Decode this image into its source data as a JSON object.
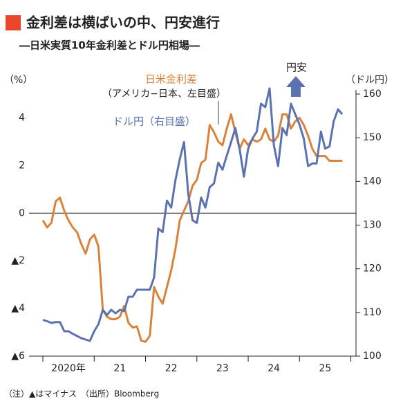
{
  "chart_data": {
    "type": "line",
    "title": "金利差は横ばいの中、円安進行",
    "subtitle": "―日米実質10年金利差とドル円相場―",
    "ylabel": "（%）",
    "y2label": "（ドル円）",
    "annotations": [
      "日米金利差",
      "（アメリカ−日本、左目盛）",
      "ドル円（右目盛）",
      "円安"
    ],
    "note": "（注）▲はマイナス　（出所）Bloomberg",
    "xlim": [
      2020,
      2026.1
    ],
    "xticks": [
      {
        "value": 2020.5,
        "label": "2020年"
      },
      {
        "value": 2021.5,
        "label": "21"
      },
      {
        "value": 2022.5,
        "label": "22"
      },
      {
        "value": 2023.5,
        "label": "23"
      },
      {
        "value": 2024.5,
        "label": "24"
      },
      {
        "value": 2025.5,
        "label": "25"
      }
    ],
    "ylim": [
      -6,
      5
    ],
    "yticks": [
      {
        "value": -6,
        "label": "▲6"
      },
      {
        "value": -4,
        "label": "▲4"
      },
      {
        "value": -2,
        "label": "▲2"
      },
      0,
      2,
      4
    ],
    "y2lim": [
      100,
      160
    ],
    "y2ticks": [
      100,
      110,
      120,
      130,
      140,
      150,
      160
    ],
    "x": [
      2020,
      2020.083,
      2020.167,
      2020.25,
      2020.333,
      2020.417,
      2020.5,
      2020.583,
      2020.667,
      2020.75,
      2020.833,
      2020.917,
      2021,
      2021.083,
      2021.167,
      2021.25,
      2021.333,
      2021.417,
      2021.5,
      2021.583,
      2021.667,
      2021.75,
      2021.833,
      2021.917,
      2022,
      2022.083,
      2022.167,
      2022.25,
      2022.333,
      2022.417,
      2022.5,
      2022.583,
      2022.667,
      2022.75,
      2022.833,
      2022.917,
      2023,
      2023.083,
      2023.167,
      2023.25,
      2023.333,
      2023.417,
      2023.5,
      2023.583,
      2023.667,
      2023.75,
      2023.833,
      2023.917,
      2024,
      2024.083,
      2024.167,
      2024.25,
      2024.333,
      2024.417,
      2024.5,
      2024.583,
      2024.667,
      2024.75,
      2024.833,
      2024.917,
      2025,
      2025.083,
      2025.167,
      2025.25,
      2025.333,
      2025.417,
      2025.5,
      2025.583,
      2025.667,
      2025.75,
      2025.833
    ],
    "series": [
      {
        "name": "日米金利差",
        "color": "#d9823b",
        "axis": "y",
        "values": [
          -0.3,
          -0.6,
          -0.4,
          0.5,
          0.65,
          0.1,
          -0.3,
          -0.6,
          -0.8,
          -1.3,
          -1.7,
          -1.1,
          -0.9,
          -1.4,
          -4.05,
          -4.35,
          -4.45,
          -4.45,
          -4.35,
          -3.9,
          -4.6,
          -4.8,
          -4.75,
          -5.35,
          -5.4,
          -5.15,
          -3.1,
          -3.5,
          -3.8,
          -3.1,
          -2.4,
          -1.5,
          -0.3,
          0.1,
          0.5,
          1.15,
          1.4,
          2.1,
          2.25,
          3.7,
          3.4,
          3.0,
          2.85,
          3.55,
          4.15,
          3.4,
          2.7,
          3.1,
          2.85,
          3.1,
          3.0,
          3.1,
          3.55,
          3.1,
          3.0,
          3.25,
          4.15,
          4.15,
          3.55,
          3.85,
          4.0,
          3.7,
          3.25,
          2.7,
          2.4,
          2.4,
          2.4,
          2.2,
          2.2,
          2.2,
          2.2
        ]
      },
      {
        "name": "ドル円",
        "color": "#5b72b0",
        "axis": "y2",
        "values": [
          108.3,
          108.0,
          107.6,
          107.8,
          107.8,
          105.7,
          105.7,
          105.1,
          104.6,
          104.1,
          103.8,
          103.5,
          105.7,
          107.3,
          110.6,
          109.4,
          110.6,
          109.8,
          110.6,
          110.3,
          113.6,
          113.6,
          115.2,
          115.2,
          115.2,
          115.2,
          118.0,
          129.2,
          128.4,
          135.6,
          134.0,
          140.3,
          145.1,
          149.0,
          137.1,
          131.1,
          130.5,
          136.3,
          134.0,
          138.7,
          139.5,
          144.3,
          142.7,
          145.9,
          149.0,
          152.2,
          147.5,
          141.1,
          147.5,
          149.8,
          151.4,
          157.8,
          157.0,
          161.3,
          148.3,
          143.5,
          152.2,
          150.6,
          157.8,
          155.4,
          153.0,
          149.8,
          143.5,
          144.1,
          144.1,
          151.4,
          147.5,
          148.0,
          153.8,
          156.5,
          155.4
        ]
      }
    ]
  }
}
